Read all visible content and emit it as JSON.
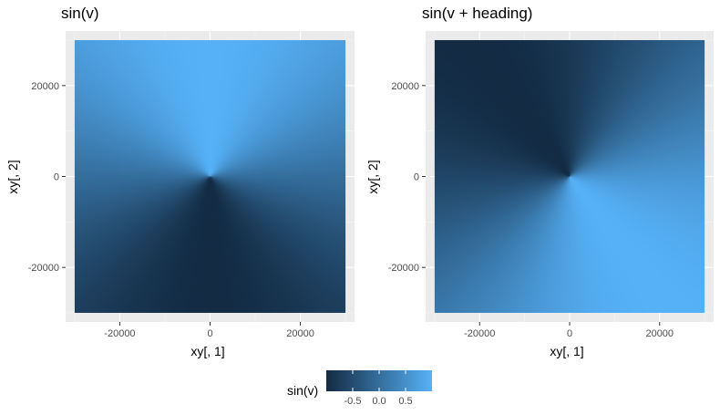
{
  "chart_data": [
    {
      "type": "heatmap",
      "title": "sin(v)",
      "xlabel": "xy[, 1]",
      "ylabel": "xy[, 2]",
      "xlim": [
        -32000,
        32000
      ],
      "ylim": [
        -32000,
        32000
      ],
      "data_extent": [
        -30000,
        30000
      ],
      "x_ticks": [
        -20000,
        0,
        20000
      ],
      "y_ticks": [
        -20000,
        0,
        20000
      ],
      "x_tick_labels": [
        "-20000",
        "0",
        "20000"
      ],
      "y_tick_labels": [
        "-20000",
        "0",
        "20000"
      ],
      "fill_formula": "sin(atan2(y, x))",
      "grid": true
    },
    {
      "type": "heatmap",
      "title": "sin(v + heading)",
      "xlabel": "xy[, 1]",
      "ylabel": "xy[, 2]",
      "xlim": [
        -32000,
        32000
      ],
      "ylim": [
        -32000,
        32000
      ],
      "data_extent": [
        -30000,
        30000
      ],
      "x_ticks": [
        -20000,
        0,
        20000
      ],
      "y_ticks": [
        -20000,
        0,
        20000
      ],
      "x_tick_labels": [
        "-20000",
        "0",
        "20000"
      ],
      "y_tick_labels": [
        "-20000",
        "0",
        "20000"
      ],
      "fill_formula": "sin(atan2(y, x) + heading)",
      "grid": true
    }
  ],
  "legend": {
    "title": "sin(v)",
    "position": "bottom",
    "range": [
      -1,
      1
    ],
    "breaks": [
      -0.5,
      0,
      0.5
    ],
    "break_labels": [
      "-0.5",
      "0.0",
      "0.5"
    ]
  },
  "colors": {
    "low": "#132B43",
    "high": "#56B1F7",
    "panel_background": "#EBEBEB",
    "grid_major": "#FFFFFF",
    "grid_minor": "#F5F5F5"
  }
}
